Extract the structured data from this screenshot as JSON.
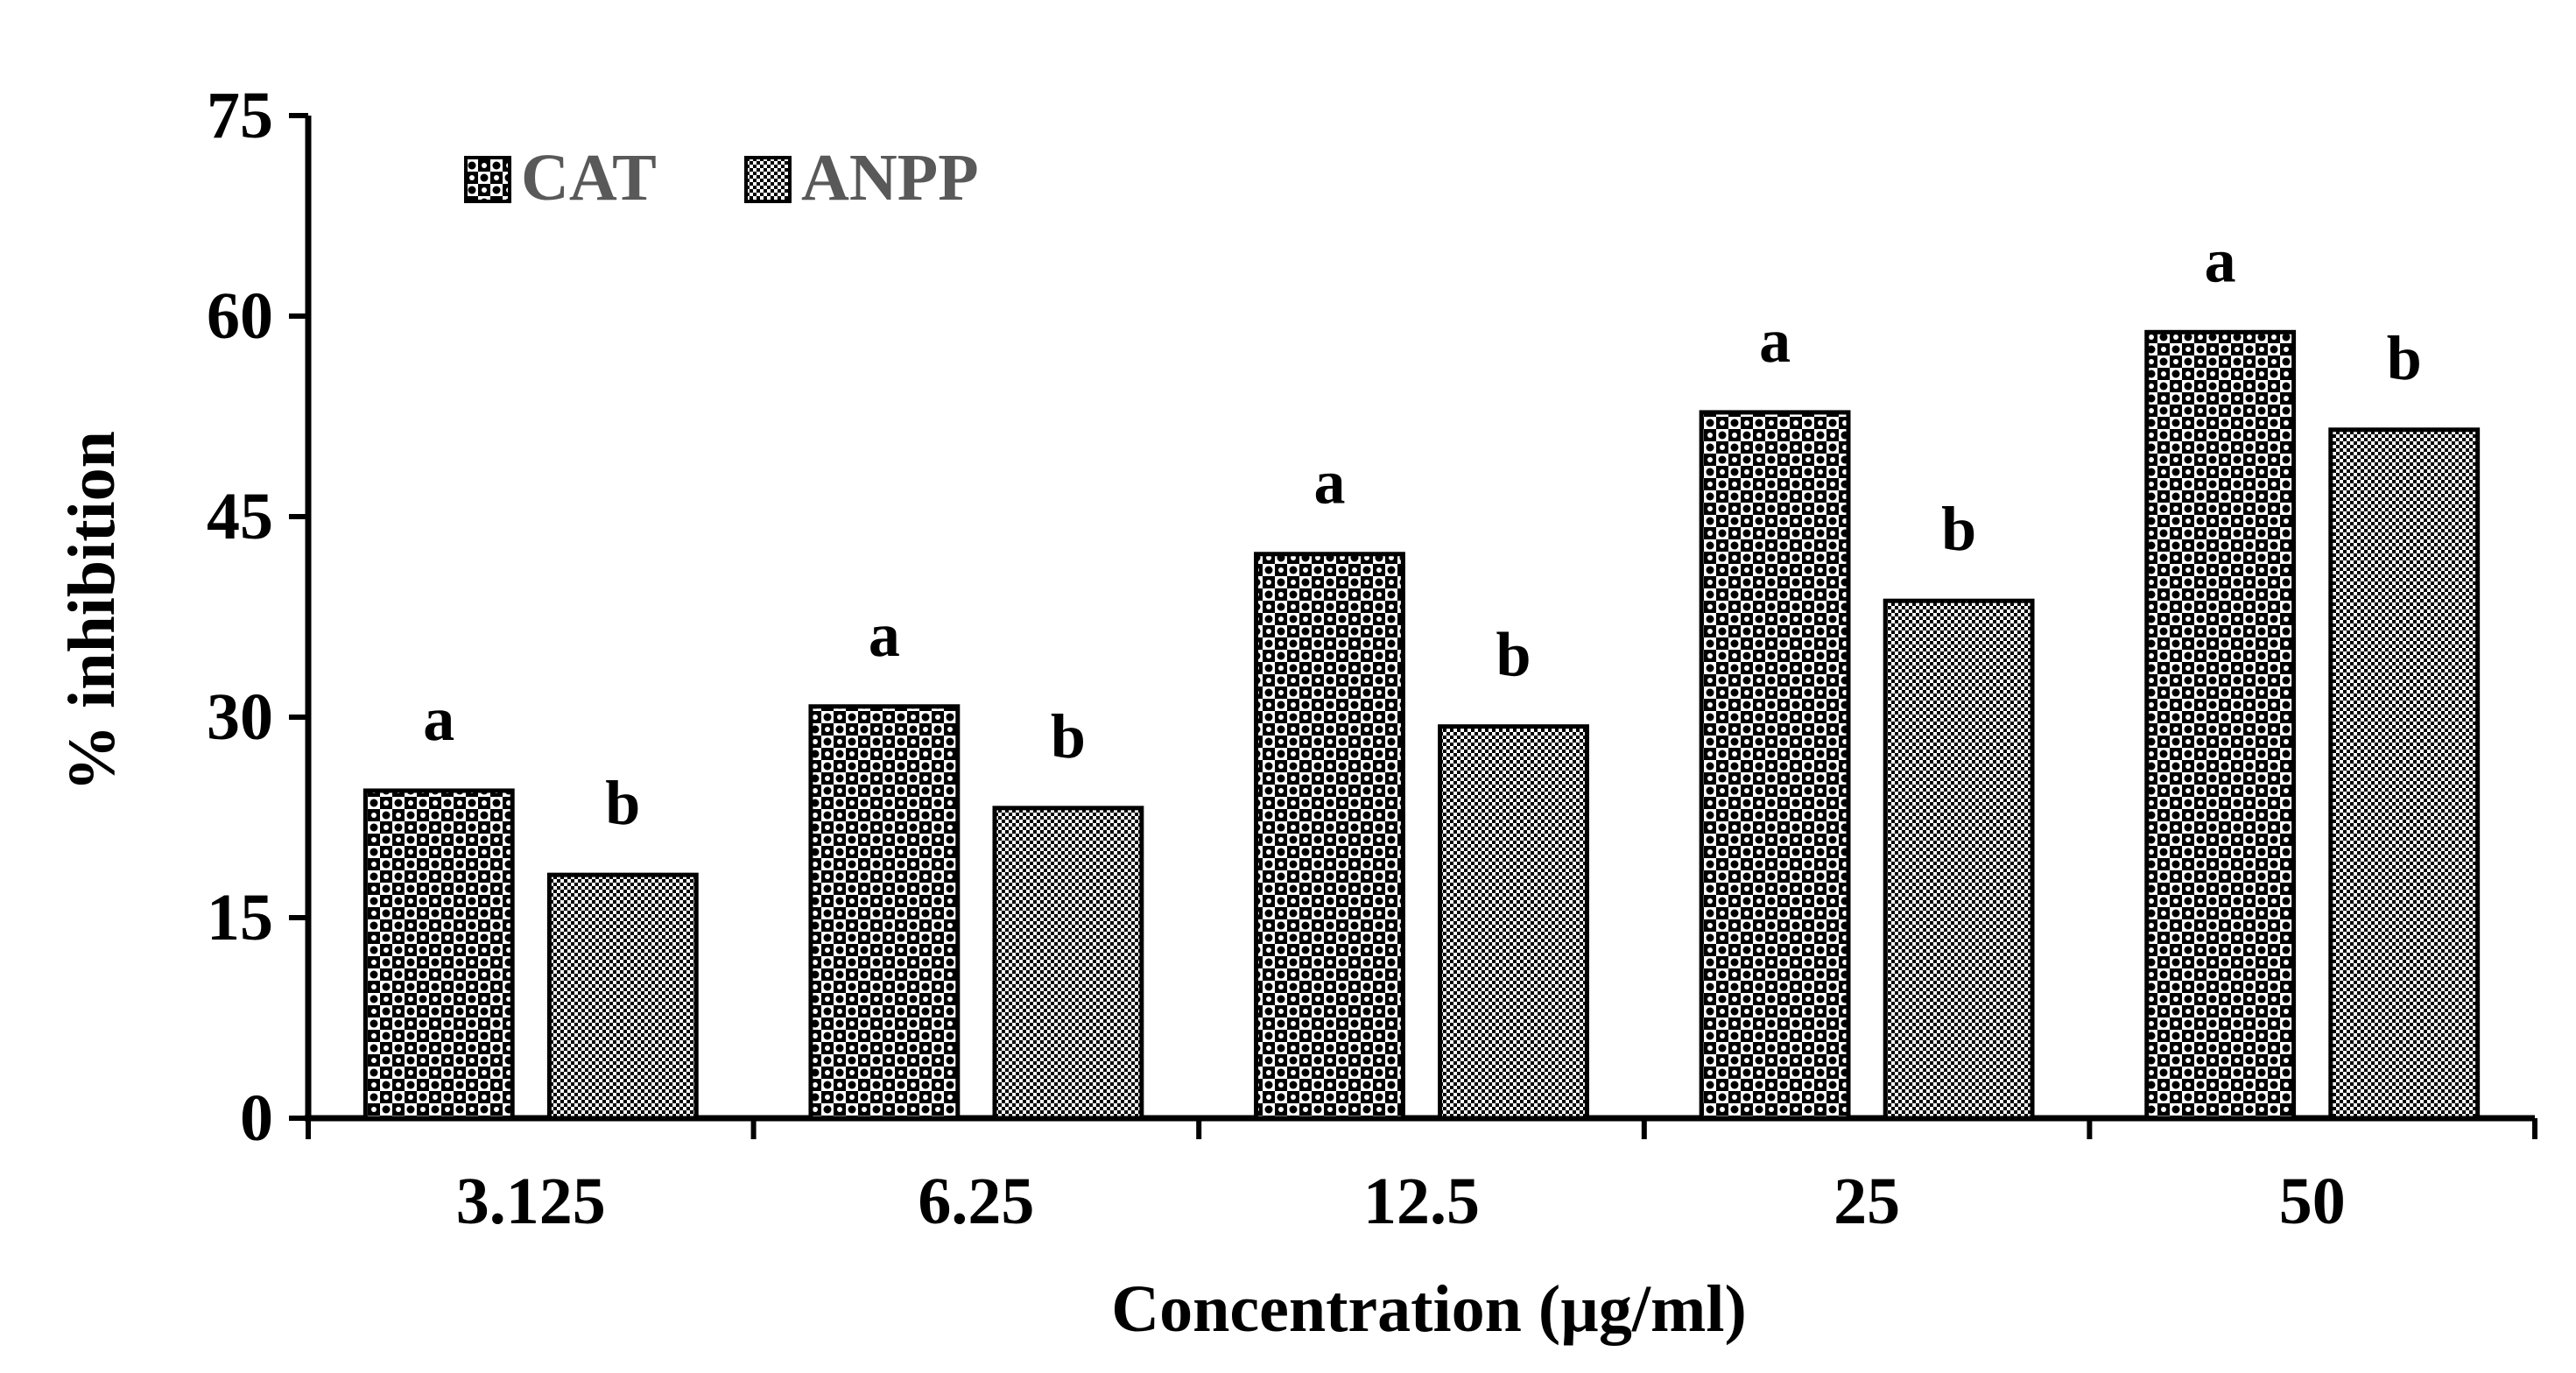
{
  "chart_data": {
    "type": "bar",
    "title": "",
    "xlabel": "Concentration (µg/ml)",
    "ylabel": "% inhibition",
    "categories": [
      "3.125",
      "6.25",
      "12.5",
      "25",
      "50"
    ],
    "ylim": [
      0,
      75
    ],
    "yticks": [
      0,
      15,
      30,
      45,
      60,
      75
    ],
    "grid": false,
    "legend_position": "top-left",
    "series": [
      {
        "name": "CAT",
        "values": [
          24.5,
          30.8,
          42.2,
          52.8,
          58.8
        ],
        "labels": [
          "a",
          "a",
          "a",
          "a",
          "a"
        ],
        "pattern": "checker-dots",
        "color": "#000000"
      },
      {
        "name": "ANPP",
        "values": [
          18.2,
          23.2,
          29.3,
          38.7,
          51.5
        ],
        "labels": [
          "b",
          "b",
          "b",
          "b",
          "b"
        ],
        "pattern": "fine-checker",
        "color": "#000000"
      }
    ]
  }
}
